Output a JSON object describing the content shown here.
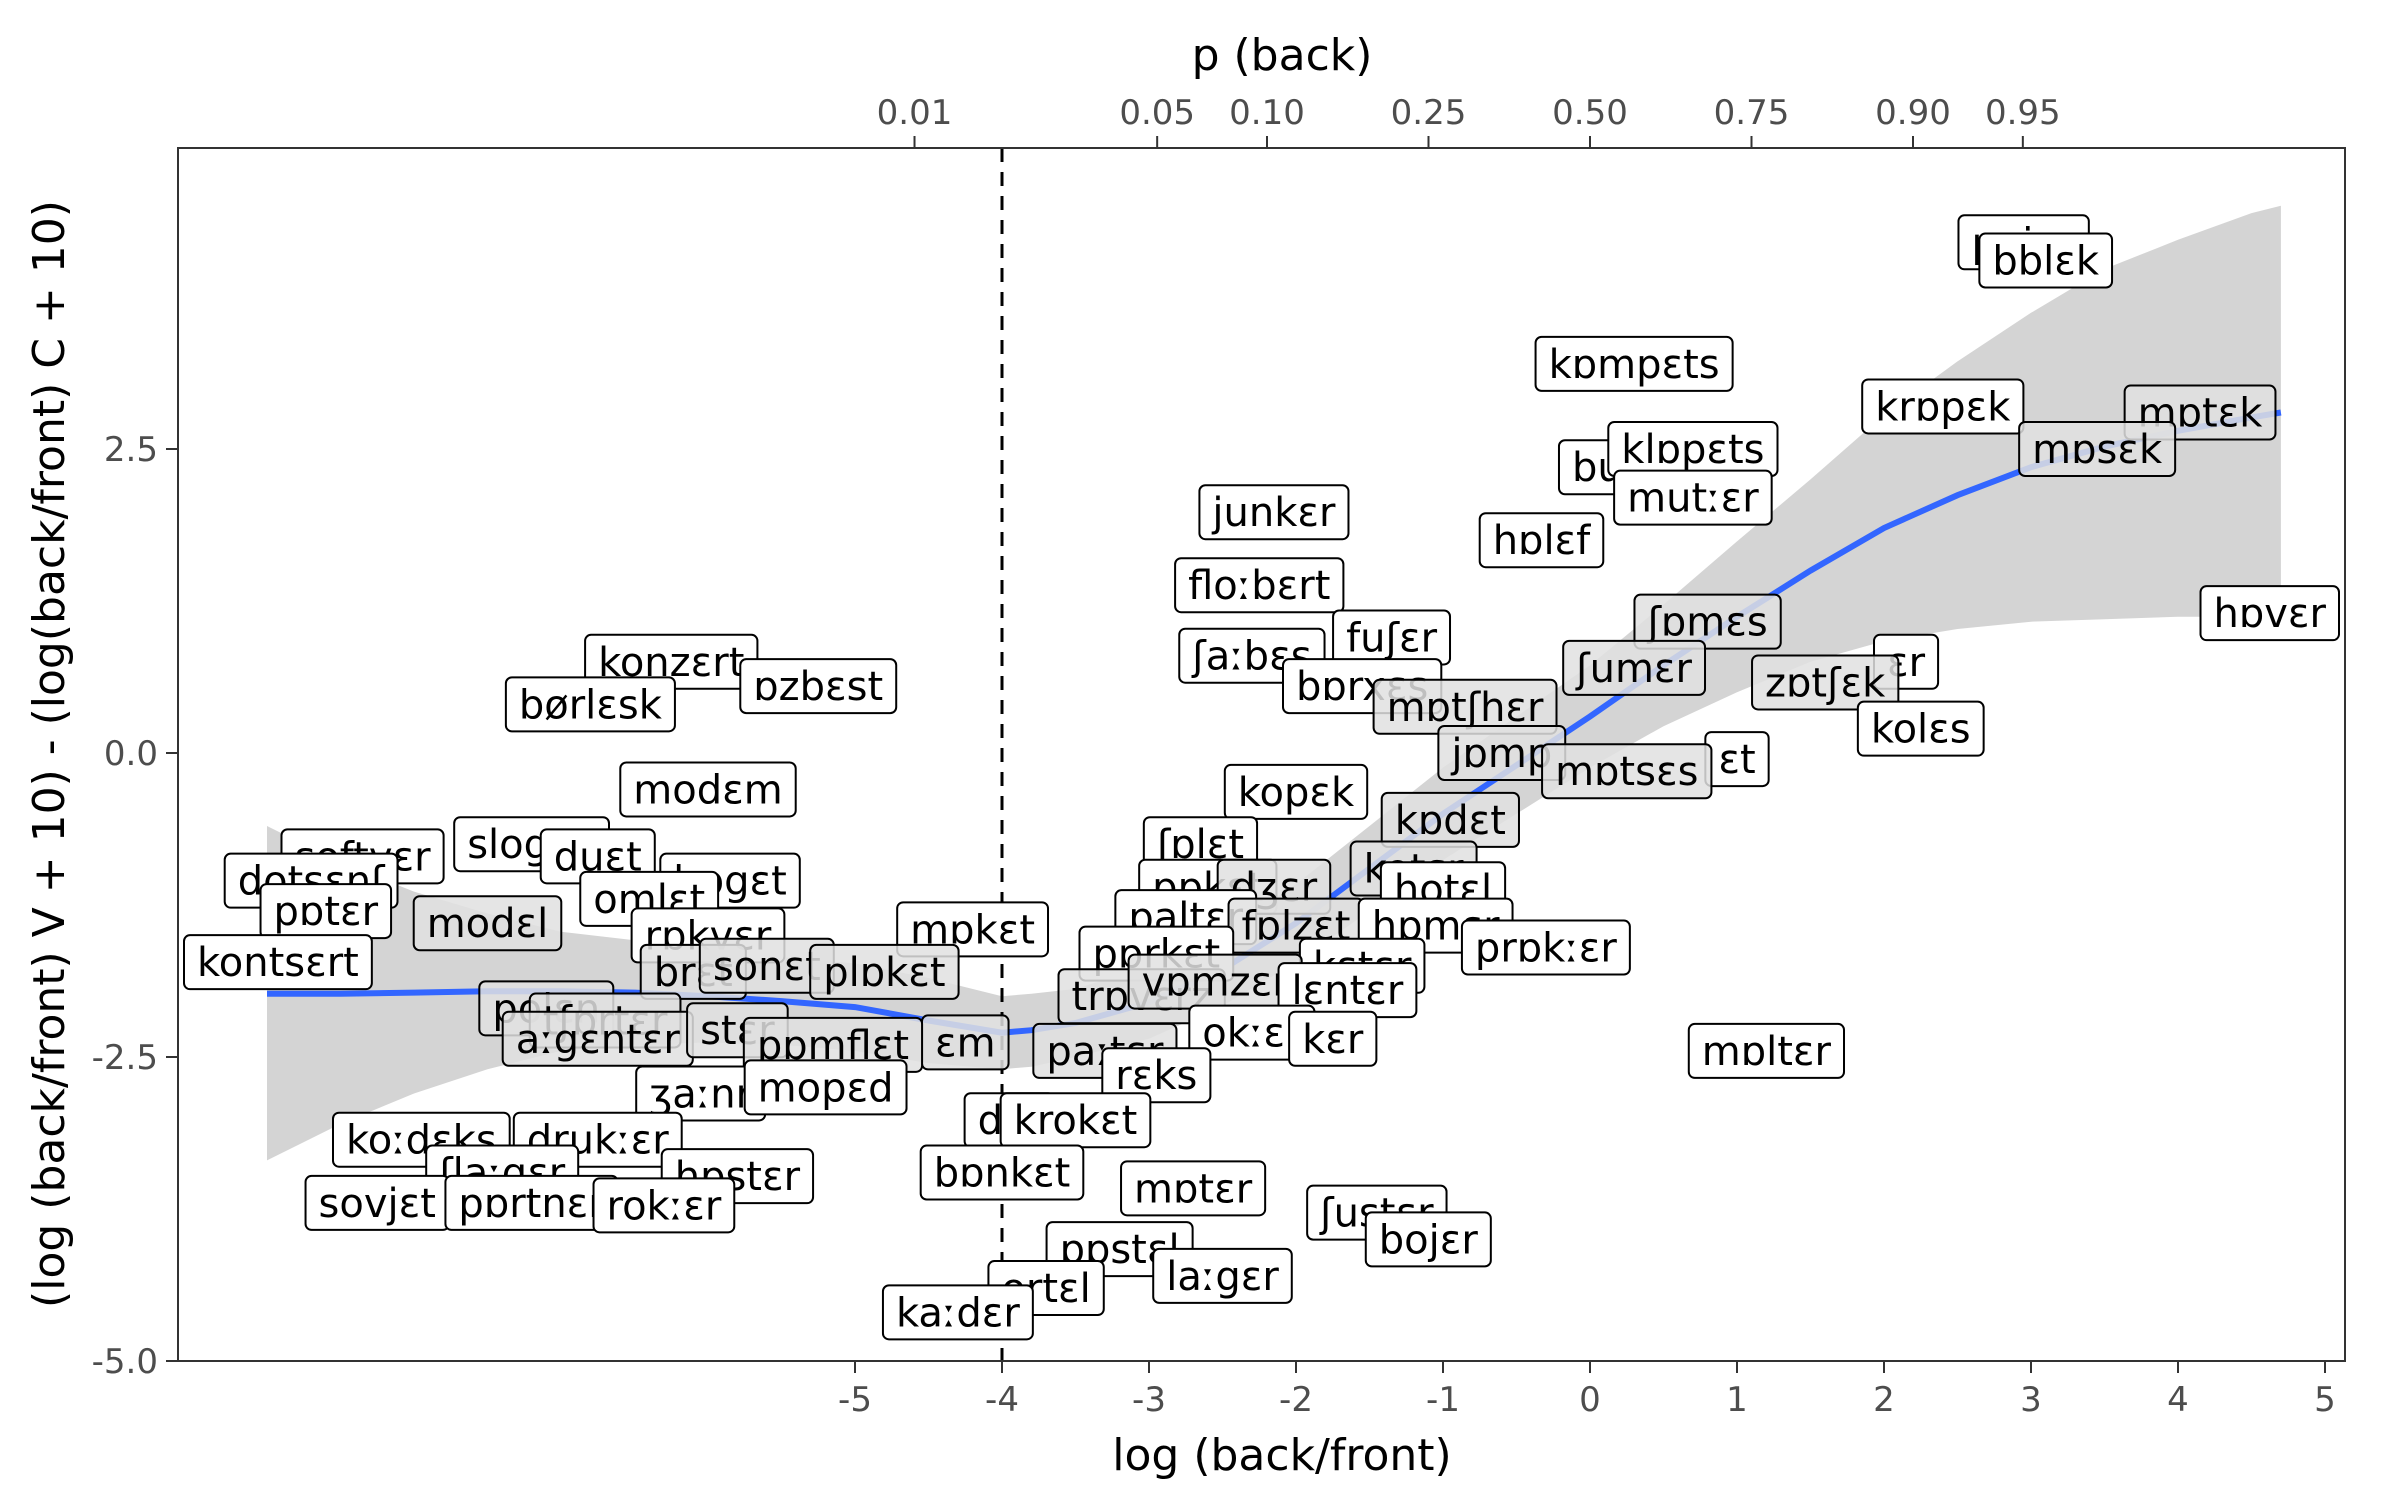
{
  "chart_data": {
    "type": "scatter",
    "title": "",
    "xlabel": "log (back/front)",
    "ylabel": "(log (back/front) V + 10) - (log(back/front) C + 10)",
    "secondary_xlabel": "p (back)",
    "xlim": [
      -9.6,
      5.1
    ],
    "ylim": [
      -5.0,
      4.9
    ],
    "x_ticks": [
      -5,
      -4,
      -3,
      -2,
      -1,
      0,
      1,
      2,
      3,
      4,
      5
    ],
    "y_ticks": [
      -5.0,
      -2.5,
      0.0,
      2.5
    ],
    "x_tick_labels": [
      "-5",
      "-4",
      "-3",
      "-2",
      "-1",
      "0",
      "1",
      "2",
      "3",
      "4",
      "5"
    ],
    "y_tick_labels": [
      "-5.0",
      "-2.5",
      "0.0",
      "2.5"
    ],
    "top_ticks": [
      0.01,
      0.05,
      0.1,
      0.25,
      0.5,
      0.75,
      0.9,
      0.95
    ],
    "top_tick_labels": [
      "0.01",
      "0.05",
      "0.10",
      "0.25",
      "0.50",
      "0.75",
      "0.90",
      "0.95"
    ],
    "vline_x": -4.0,
    "grid": false,
    "colors": {
      "smooth_line": "#3366ff",
      "ribbon": "#d4d4d4",
      "label_fill": "#ffffff",
      "label_fill_faded": "#e0e0e0",
      "text": "#000000",
      "tick": "#4d4d4d"
    },
    "smooth": {
      "x": [
        -9.0,
        -8.5,
        -8.0,
        -7.5,
        -7.0,
        -6.5,
        -6.0,
        -5.5,
        -5.0,
        -4.5,
        -4.0,
        -3.8,
        -3.5,
        -3.0,
        -2.5,
        -2.0,
        -1.5,
        -1.0,
        -0.5,
        0.0,
        0.5,
        1.0,
        1.5,
        2.0,
        2.5,
        3.0,
        3.5,
        4.0,
        4.5,
        4.7
      ],
      "y": [
        -1.98,
        -1.98,
        -1.97,
        -1.96,
        -1.96,
        -1.97,
        -2.0,
        -2.04,
        -2.09,
        -2.2,
        -2.3,
        -2.28,
        -2.22,
        -2.05,
        -1.78,
        -1.4,
        -0.95,
        -0.5,
        -0.1,
        0.3,
        0.72,
        1.12,
        1.5,
        1.85,
        2.12,
        2.35,
        2.52,
        2.65,
        2.76,
        2.8
      ],
      "lower": [
        -3.35,
        -3.05,
        -2.8,
        -2.6,
        -2.45,
        -2.4,
        -2.38,
        -2.4,
        -2.45,
        -2.55,
        -2.6,
        -2.58,
        -2.5,
        -2.35,
        -2.08,
        -1.72,
        -1.3,
        -0.88,
        -0.5,
        -0.12,
        0.22,
        0.5,
        0.75,
        0.92,
        1.02,
        1.08,
        1.1,
        1.12,
        1.12,
        1.1
      ],
      "upper": [
        -0.6,
        -0.9,
        -1.14,
        -1.32,
        -1.47,
        -1.54,
        -1.62,
        -1.68,
        -1.73,
        -1.85,
        -2.0,
        -1.98,
        -1.94,
        -1.75,
        -1.48,
        -1.08,
        -0.6,
        -0.12,
        0.3,
        0.72,
        1.22,
        1.74,
        2.25,
        2.78,
        3.22,
        3.62,
        3.98,
        4.22,
        4.44,
        4.5
      ]
    },
    "points": [
      {
        "label": "ppjɛs",
        "x": 2.95,
        "y": 4.2,
        "faded": false
      },
      {
        "label": "bblɛk",
        "x": 3.1,
        "y": 4.05,
        "faded": false
      },
      {
        "label": "kɒmpɛts",
        "x": 0.3,
        "y": 3.2,
        "faded": false
      },
      {
        "label": "krɒpɛk",
        "x": 2.4,
        "y": 2.85,
        "faded": false
      },
      {
        "label": "mɒtɛk",
        "x": 4.15,
        "y": 2.8,
        "faded": true
      },
      {
        "label": "mɒsɛk",
        "x": 3.45,
        "y": 2.5,
        "faded": true
      },
      {
        "label": "bu",
        "x": 0.05,
        "y": 2.35,
        "faded": false
      },
      {
        "label": "klɒpɛts",
        "x": 0.7,
        "y": 2.5,
        "faded": false
      },
      {
        "label": "mutːɛr",
        "x": 0.7,
        "y": 2.1,
        "faded": false
      },
      {
        "label": "junkɛr",
        "x": -2.15,
        "y": 1.98,
        "faded": false
      },
      {
        "label": "hɒlɛf",
        "x": -0.33,
        "y": 1.75,
        "faded": false
      },
      {
        "label": "floːbɛrt",
        "x": -2.25,
        "y": 1.38,
        "faded": false
      },
      {
        "label": "hɒvɛr",
        "x": 4.7,
        "y": 1.15,
        "faded": false
      },
      {
        "label": "ʃɒmɛs",
        "x": 0.8,
        "y": 1.08,
        "faded": true
      },
      {
        "label": "fuʃɛr",
        "x": -1.35,
        "y": 0.95,
        "faded": false
      },
      {
        "label": "ʃaːbɛs",
        "x": -2.3,
        "y": 0.8,
        "faded": false
      },
      {
        "label": "ʃumɛr",
        "x": 0.3,
        "y": 0.7,
        "faded": true
      },
      {
        "label": "ɛr",
        "x": 2.15,
        "y": 0.75,
        "faded": false
      },
      {
        "label": "zɒtʃɛk",
        "x": 1.6,
        "y": 0.58,
        "faded": true
      },
      {
        "label": "bɒrxɛs",
        "x": -1.55,
        "y": 0.55,
        "faded": false
      },
      {
        "label": "mɒtʃhɛr",
        "x": -0.85,
        "y": 0.38,
        "faded": true
      },
      {
        "label": "kolɛs",
        "x": 2.25,
        "y": 0.2,
        "faded": false
      },
      {
        "label": "jɒmp",
        "x": -0.6,
        "y": 0.0,
        "faded": true
      },
      {
        "label": "ɛt",
        "x": 1.0,
        "y": -0.05,
        "faded": false
      },
      {
        "label": "mɒtsɛs",
        "x": 0.25,
        "y": -0.15,
        "faded": true
      },
      {
        "label": "konzɛrt",
        "x": -6.25,
        "y": 0.75,
        "faded": false
      },
      {
        "label": "ɒzbɛst",
        "x": -5.25,
        "y": 0.55,
        "faded": false
      },
      {
        "label": "børlɛsk",
        "x": -6.8,
        "y": 0.4,
        "faded": false
      },
      {
        "label": "modɛm",
        "x": -6.0,
        "y": -0.3,
        "faded": false
      },
      {
        "label": "kopɛk",
        "x": -2.0,
        "y": -0.32,
        "faded": false
      },
      {
        "label": "kɒdɛt",
        "x": -0.95,
        "y": -0.55,
        "faded": true
      },
      {
        "label": "ʃɒlɛt",
        "x": -2.65,
        "y": -0.75,
        "faded": false
      },
      {
        "label": "softvɛr",
        "x": -8.35,
        "y": -0.85,
        "faded": false
      },
      {
        "label": "slogɛn",
        "x": -7.2,
        "y": -0.75,
        "faded": false
      },
      {
        "label": "duɛt",
        "x": -6.75,
        "y": -0.85,
        "faded": false
      },
      {
        "label": "dotsɛnʃ",
        "x": -8.7,
        "y": -1.05,
        "faded": false
      },
      {
        "label": "bɒgɛt",
        "x": -5.85,
        "y": -1.05,
        "faded": false
      },
      {
        "label": "pɒkɛt",
        "x": -2.6,
        "y": -1.1,
        "faded": false
      },
      {
        "label": "dʒɛr",
        "x": -2.15,
        "y": -1.1,
        "faded": true
      },
      {
        "label": "kotɛr",
        "x": -1.2,
        "y": -0.95,
        "faded": true
      },
      {
        "label": "hotɛl",
        "x": -1.0,
        "y": -1.12,
        "faded": false
      },
      {
        "label": "omlɛt",
        "x": -6.4,
        "y": -1.2,
        "faded": false
      },
      {
        "label": "pɒtɛr",
        "x": -8.6,
        "y": -1.3,
        "faded": false
      },
      {
        "label": "modɛl",
        "x": -7.5,
        "y": -1.4,
        "faded": true
      },
      {
        "label": "paltɛr",
        "x": -2.75,
        "y": -1.35,
        "faded": false
      },
      {
        "label": "mɒkɛt",
        "x": -4.2,
        "y": -1.45,
        "faded": false
      },
      {
        "label": "fɒlzɛt",
        "x": -2.0,
        "y": -1.42,
        "faded": true
      },
      {
        "label": "hɒmɛr",
        "x": -1.05,
        "y": -1.42,
        "faded": false
      },
      {
        "label": "prɒkːɛr",
        "x": -0.3,
        "y": -1.6,
        "faded": false
      },
      {
        "label": "rɒkvɛr",
        "x": -6.0,
        "y": -1.5,
        "faded": false
      },
      {
        "label": "pɒrkɛt",
        "x": -2.95,
        "y": -1.65,
        "faded": false
      },
      {
        "label": "kɛtɛr",
        "x": -1.55,
        "y": -1.75,
        "faded": false
      },
      {
        "label": "kontsɛrt",
        "x": -9.0,
        "y": -1.72,
        "faded": false
      },
      {
        "label": "brɛt",
        "x": -6.1,
        "y": -1.8,
        "faded": true
      },
      {
        "label": "sonɛt",
        "x": -5.6,
        "y": -1.75,
        "faded": true
      },
      {
        "label": "plɒkɛt",
        "x": -4.8,
        "y": -1.8,
        "faded": true
      },
      {
        "label": "trɒvɛrz",
        "x": -3.05,
        "y": -2.0,
        "faded": true
      },
      {
        "label": "vɒmzɛr",
        "x": -2.55,
        "y": -1.88,
        "faded": true
      },
      {
        "label": "lɛntɛr",
        "x": -1.65,
        "y": -1.95,
        "faded": false
      },
      {
        "label": "polɛn",
        "x": -7.1,
        "y": -2.1,
        "faded": true
      },
      {
        "label": "tʃɒrtɛr",
        "x": -6.7,
        "y": -2.2,
        "faded": true
      },
      {
        "label": "aːgɛntɛr",
        "x": -6.75,
        "y": -2.35,
        "faded": true
      },
      {
        "label": "stɛr",
        "x": -5.8,
        "y": -2.28,
        "faded": true
      },
      {
        "label": "ɛm",
        "x": -4.25,
        "y": -2.38,
        "faded": true
      },
      {
        "label": "okːɛr",
        "x": -2.3,
        "y": -2.3,
        "faded": false
      },
      {
        "label": "kɛr",
        "x": -1.75,
        "y": -2.35,
        "faded": false
      },
      {
        "label": "pɒmflɛt",
        "x": -5.15,
        "y": -2.4,
        "faded": true
      },
      {
        "label": "paːtɛr",
        "x": -3.3,
        "y": -2.45,
        "faded": true
      },
      {
        "label": "mɒltɛr",
        "x": 1.2,
        "y": -2.45,
        "faded": false
      },
      {
        "label": "rɛks",
        "x": -2.95,
        "y": -2.65,
        "faded": false
      },
      {
        "label": "ʒaːnr",
        "x": -6.05,
        "y": -2.8,
        "faded": false
      },
      {
        "label": "mopɛd",
        "x": -5.2,
        "y": -2.75,
        "faded": false
      },
      {
        "label": "dɛr",
        "x": -3.95,
        "y": -3.02,
        "faded": false
      },
      {
        "label": "krokɛt",
        "x": -3.5,
        "y": -3.02,
        "faded": false
      },
      {
        "label": "koːdɛks",
        "x": -7.95,
        "y": -3.18,
        "faded": false
      },
      {
        "label": "drukːɛr",
        "x": -6.75,
        "y": -3.18,
        "faded": false
      },
      {
        "label": "ʃlaːgɛr",
        "x": -7.4,
        "y": -3.45,
        "faded": false
      },
      {
        "label": "hɒstɛr",
        "x": -5.8,
        "y": -3.48,
        "faded": false
      },
      {
        "label": "bɒnkɛt",
        "x": -4.0,
        "y": -3.45,
        "faded": false
      },
      {
        "label": "sovjɛt",
        "x": -8.25,
        "y": -3.7,
        "faded": false
      },
      {
        "label": "pɒrtnɛr",
        "x": -7.2,
        "y": -3.7,
        "faded": false
      },
      {
        "label": "rokːɛr",
        "x": -6.3,
        "y": -3.72,
        "faded": false
      },
      {
        "label": "mɒtɛr",
        "x": -2.7,
        "y": -3.58,
        "faded": false
      },
      {
        "label": "ʃustɛr",
        "x": -1.45,
        "y": -3.78,
        "faded": false
      },
      {
        "label": "bojɛr",
        "x": -1.1,
        "y": -4.0,
        "faded": false
      },
      {
        "label": "pɒstɛl",
        "x": -3.2,
        "y": -4.08,
        "faded": false
      },
      {
        "label": "laːgɛr",
        "x": -2.5,
        "y": -4.3,
        "faded": false
      },
      {
        "label": "ortɛl",
        "x": -3.7,
        "y": -4.4,
        "faded": false
      },
      {
        "label": "kaːdɛr",
        "x": -4.3,
        "y": -4.6,
        "faded": false
      }
    ]
  }
}
